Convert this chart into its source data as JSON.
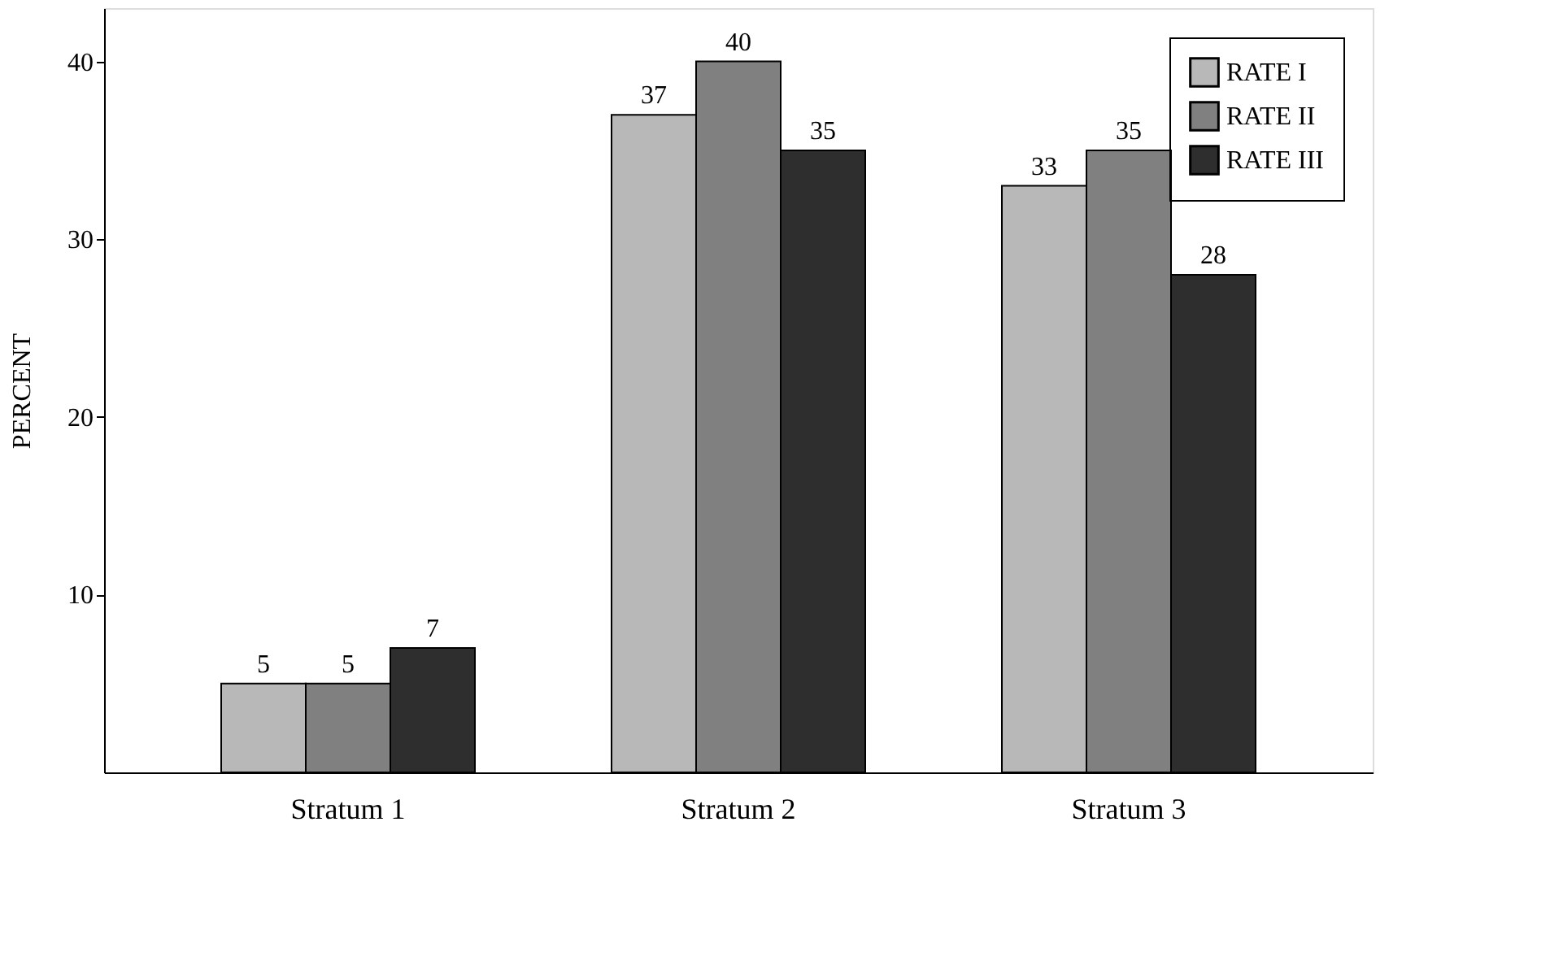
{
  "chart_data": {
    "type": "bar",
    "ylabel": "PERCENT",
    "categories": [
      "Stratum 1",
      "Stratum 2",
      "Stratum 3"
    ],
    "series": [
      {
        "name": "RATE I",
        "color": "#b8b8b8",
        "values": [
          5,
          37,
          33
        ]
      },
      {
        "name": "RATE II",
        "color": "#808080",
        "values": [
          5,
          40,
          35
        ]
      },
      {
        "name": "RATE III",
        "color": "#2e2e2e",
        "values": [
          7,
          35,
          28
        ]
      }
    ],
    "ylim": [
      0,
      43
    ],
    "yticks": [
      10,
      20,
      30,
      40
    ],
    "grid": false,
    "legend": "top right",
    "data_labels": true
  }
}
